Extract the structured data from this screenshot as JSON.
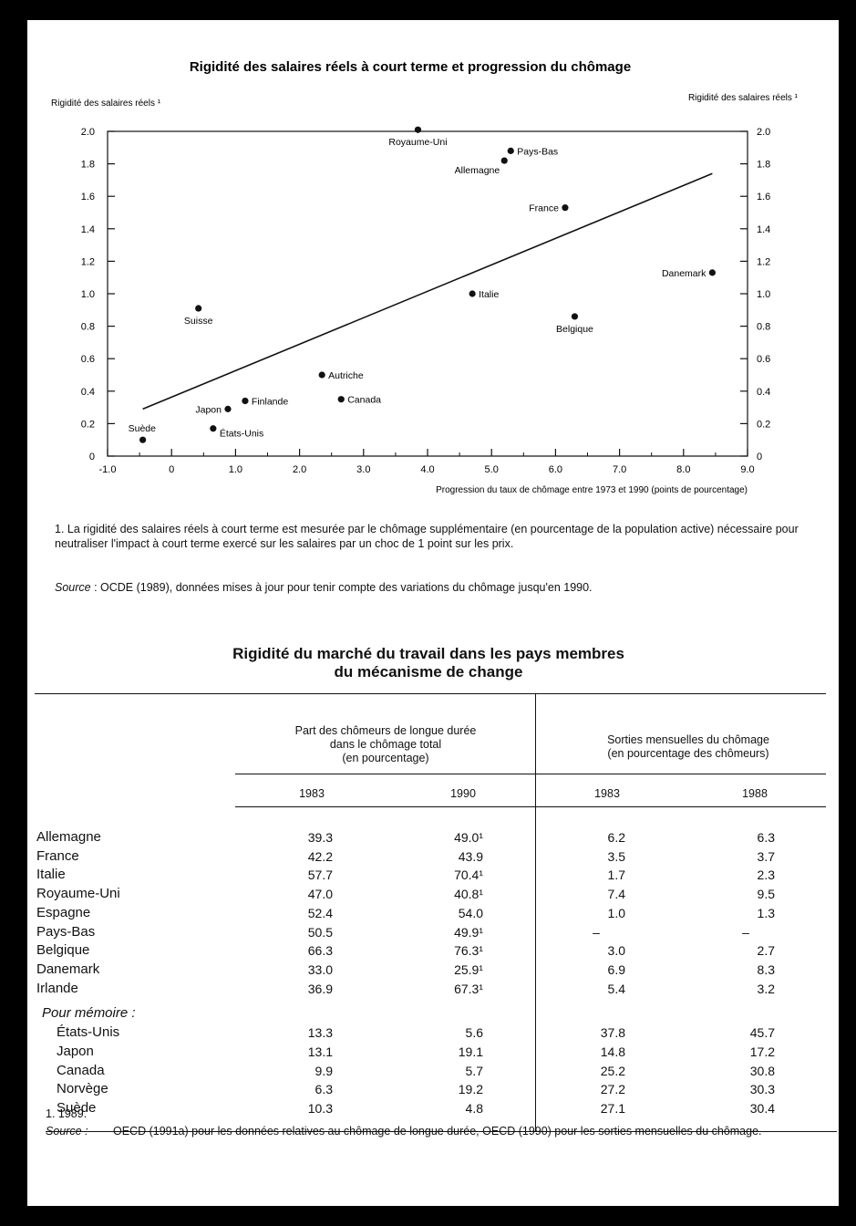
{
  "chart_data": {
    "type": "scatter",
    "title": "Rigidité des salaires réels à court terme et progression du chômage",
    "ylabel_left": "Rigidité des salaires réels ¹",
    "ylabel_right": "Rigidité des salaires réels ¹",
    "xlabel": "Progression du taux de chômage entre 1973 et 1990 (points de pourcentage)",
    "xlim": [
      -1.0,
      9.0
    ],
    "ylim": [
      0,
      2.0
    ],
    "xticks": [
      "-1.0",
      "0",
      "1.0",
      "2.0",
      "3.0",
      "4.0",
      "5.0",
      "6.0",
      "7.0",
      "8.0",
      "9.0"
    ],
    "yticks": [
      "0",
      "0.2",
      "0.4",
      "0.6",
      "0.8",
      "1.0",
      "1.2",
      "1.4",
      "1.6",
      "1.8",
      "2.0"
    ],
    "points": [
      {
        "label": "Suède",
        "x": -0.45,
        "y": 0.1,
        "lpos": "above-left"
      },
      {
        "label": "États-Unis",
        "x": 0.65,
        "y": 0.17,
        "lpos": "below-right"
      },
      {
        "label": "Japon",
        "x": 0.88,
        "y": 0.29,
        "lpos": "left"
      },
      {
        "label": "Finlande",
        "x": 1.15,
        "y": 0.34,
        "lpos": "right"
      },
      {
        "label": "Suisse",
        "x": 0.42,
        "y": 0.91,
        "lpos": "below"
      },
      {
        "label": "Autriche",
        "x": 2.35,
        "y": 0.5,
        "lpos": "right"
      },
      {
        "label": "Canada",
        "x": 2.65,
        "y": 0.35,
        "lpos": "right"
      },
      {
        "label": "Royaume-Uni",
        "x": 3.85,
        "y": 2.01,
        "lpos": "below"
      },
      {
        "label": "Allemagne",
        "x": 5.2,
        "y": 1.82,
        "lpos": "below-left"
      },
      {
        "label": "Pays-Bas",
        "x": 5.3,
        "y": 1.88,
        "lpos": "right"
      },
      {
        "label": "France",
        "x": 6.15,
        "y": 1.53,
        "lpos": "left"
      },
      {
        "label": "Italie",
        "x": 4.7,
        "y": 1.0,
        "lpos": "right"
      },
      {
        "label": "Belgique",
        "x": 6.3,
        "y": 0.86,
        "lpos": "below"
      },
      {
        "label": "Danemark",
        "x": 8.45,
        "y": 1.13,
        "lpos": "left"
      }
    ],
    "trend_line": {
      "x": [
        -0.45,
        8.45
      ],
      "y": [
        0.29,
        1.74
      ]
    }
  },
  "chart_note": "1.  La rigidité des salaires réels à court terme est mesurée par le chômage supplémentaire (en pourcentage de la population active) nécessaire pour neutraliser l'impact à court terme exercé sur les salaires par un choc de 1 point sur les prix.",
  "chart_source_label": "Source",
  "chart_source_text": " :  OCDE (1989), données mises à jour pour tenir compte des variations du chômage jusqu'en 1990.",
  "table": {
    "title_line1": "Rigidité du marché du travail dans les pays membres",
    "title_line2": "du mécanisme de change",
    "group1_header": [
      "Part des chômeurs de longue durée",
      "dans le chômage total",
      "(en pourcentage)"
    ],
    "group2_header": [
      "Sorties mensuelles du chômage",
      "(en pourcentage des chômeurs)"
    ],
    "years": [
      "1983",
      "1990",
      "1983",
      "1988"
    ],
    "rows": [
      {
        "name": "Allemagne",
        "v": [
          "39.3",
          "49.0¹",
          "6.2",
          "6.3"
        ]
      },
      {
        "name": "France",
        "v": [
          "42.2",
          "43.9",
          "3.5",
          "3.7"
        ]
      },
      {
        "name": "Italie",
        "v": [
          "57.7",
          "70.4¹",
          "1.7",
          "2.3"
        ]
      },
      {
        "name": "Royaume-Uni",
        "v": [
          "47.0",
          "40.8¹",
          "7.4",
          "9.5"
        ]
      },
      {
        "name": "Espagne",
        "v": [
          "52.4",
          "54.0",
          "1.0",
          "1.3"
        ]
      },
      {
        "name": "Pays-Bas",
        "v": [
          "50.5",
          "49.9¹",
          "–",
          "–"
        ]
      },
      {
        "name": "Belgique",
        "v": [
          "66.3",
          "76.3¹",
          "3.0",
          "2.7"
        ]
      },
      {
        "name": "Danemark",
        "v": [
          "33.0",
          "25.9¹",
          "6.9",
          "8.3"
        ]
      },
      {
        "name": "Irlande",
        "v": [
          "36.9",
          "67.3¹",
          "5.4",
          "3.2"
        ]
      }
    ],
    "memo_label": "Pour mémoire :",
    "memo_rows": [
      {
        "name": "États-Unis",
        "v": [
          "13.3",
          "5.6",
          "37.8",
          "45.7"
        ]
      },
      {
        "name": "Japon",
        "v": [
          "13.1",
          "19.1",
          "14.8",
          "17.2"
        ]
      },
      {
        "name": "Canada",
        "v": [
          "9.9",
          "5.7",
          "25.2",
          "30.8"
        ]
      },
      {
        "name": "Norvège",
        "v": [
          "6.3",
          "19.2",
          "27.2",
          "30.3"
        ]
      },
      {
        "name": "Suède",
        "v": [
          "10.3",
          "4.8",
          "27.1",
          "30.4"
        ]
      }
    ],
    "footnote1": "1.  1989.",
    "source_label": "Source :",
    "source_text": "OECD (1991a) pour les données relatives au chômage de longue durée, OECD (1990) pour les sorties mensuelles du chômage."
  }
}
